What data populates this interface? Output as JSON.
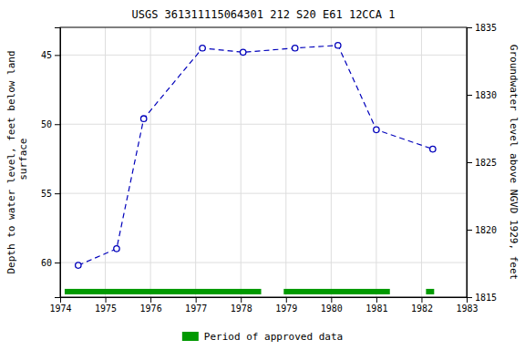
{
  "chart_data": {
    "type": "line",
    "title": "USGS 361311115064301 212  S20 E61 12CCA 1",
    "ylabel": "Depth to water level, feet below land\n surface",
    "y2label": "Groundwater level above NGVD 1929, feet",
    "x": [
      1974.4,
      1975.25,
      1975.85,
      1977.15,
      1978.05,
      1979.2,
      1980.15,
      1981.0,
      1982.25
    ],
    "xlim": [
      1974,
      1983
    ],
    "xticks": [
      1974,
      1975,
      1976,
      1977,
      1978,
      1979,
      1980,
      1981,
      1982,
      1983
    ],
    "ylim": [
      62.5,
      43.0
    ],
    "yticks": [
      45,
      50,
      55,
      60
    ],
    "y2lim": [
      1815,
      1835
    ],
    "y2ticks": [
      1815,
      1820,
      1825,
      1830,
      1835
    ],
    "grid": true,
    "series": [
      {
        "type": "line",
        "color": "#0000BB",
        "marker": "circle",
        "line_style": "dashed",
        "values": [
          60.2,
          59.0,
          49.6,
          44.5,
          44.8,
          44.5,
          44.3,
          50.4,
          51.8
        ]
      },
      {
        "type": "span",
        "name": "Period of approved data",
        "color": "#009900",
        "y": 62.1,
        "values": [
          [
            1974.1,
            1978.45
          ],
          [
            1978.95,
            1981.3
          ],
          [
            1982.1,
            1982.28
          ]
        ]
      }
    ]
  }
}
